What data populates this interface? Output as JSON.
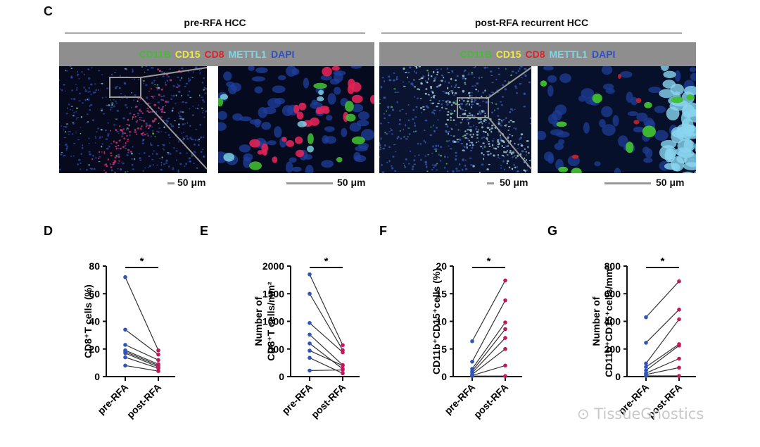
{
  "panel_c": {
    "letter": "C",
    "left_title": "pre-RFA HCC",
    "right_title": "post-RFA recurrent HCC",
    "stains": [
      {
        "label": "CD11B",
        "color": "#3fbf2f"
      },
      {
        "label": "CD15",
        "color": "#f2e93a"
      },
      {
        "label": "CD8",
        "color": "#e0202a"
      },
      {
        "label": "METTL1",
        "color": "#7ed6e6"
      },
      {
        "label": "DAPI",
        "color": "#2e4fc8"
      }
    ],
    "scale_labels": [
      "50 μm",
      "50 μm",
      "50 μm",
      "50 μm"
    ]
  },
  "colors": {
    "pre": "#2f55b8",
    "post": "#c2185b",
    "line": "#333333"
  },
  "chart_data": [
    {
      "type": "scatter",
      "letter": "D",
      "ylabel_lines": [
        "CD8⁺T cells (%)"
      ],
      "ylim": [
        0,
        80
      ],
      "yticks": [
        "0",
        "20",
        "40",
        "60",
        "80"
      ],
      "categories": [
        "pre-RFA",
        "post-RFA"
      ],
      "sig": "*",
      "pairs": [
        [
          72,
          19
        ],
        [
          34,
          16
        ],
        [
          23,
          12
        ],
        [
          19,
          9
        ],
        [
          18,
          8
        ],
        [
          17,
          7
        ],
        [
          14,
          6
        ],
        [
          8,
          4
        ]
      ]
    },
    {
      "type": "scatter",
      "letter": "E",
      "ylabel_lines": [
        "Number of",
        "CD8⁺T cells/mm²"
      ],
      "ylim": [
        0,
        2000
      ],
      "yticks": [
        "0",
        "500",
        "1000",
        "1500",
        "2000"
      ],
      "categories": [
        "pre-RFA",
        "post-RFA"
      ],
      "sig": "*",
      "pairs": [
        [
          1850,
          570
        ],
        [
          1500,
          480
        ],
        [
          970,
          440
        ],
        [
          760,
          210
        ],
        [
          600,
          140
        ],
        [
          470,
          200
        ],
        [
          340,
          60
        ],
        [
          110,
          120
        ]
      ]
    },
    {
      "type": "scatter",
      "letter": "F",
      "ylabel_lines": [
        "CD11b⁺CD15⁺cells (%)"
      ],
      "ylim": [
        0,
        20
      ],
      "yticks": [
        "0",
        "5",
        "10",
        "15",
        "20"
      ],
      "categories": [
        "pre-RFA",
        "post-RFA"
      ],
      "sig": "*",
      "pairs": [
        [
          6.4,
          17.4
        ],
        [
          2.7,
          13.8
        ],
        [
          1.4,
          9.8
        ],
        [
          1.0,
          8.6
        ],
        [
          0.7,
          7.0
        ],
        [
          0.4,
          5.0
        ],
        [
          0.2,
          2.0
        ],
        [
          0.1,
          0.1
        ]
      ]
    },
    {
      "type": "scatter",
      "letter": "G",
      "ylabel_lines": [
        "Number of",
        "CD11b⁺CD15⁺cells/mm²"
      ],
      "ylim": [
        0,
        800
      ],
      "yticks": [
        "0",
        "200",
        "400",
        "600",
        "800"
      ],
      "categories": [
        "pre-RFA",
        "post-RFA"
      ],
      "sig": "*",
      "pairs": [
        [
          430,
          690
        ],
        [
          245,
          485
        ],
        [
          95,
          415
        ],
        [
          70,
          235
        ],
        [
          45,
          225
        ],
        [
          25,
          130
        ],
        [
          15,
          65
        ],
        [
          5,
          5
        ]
      ]
    }
  ],
  "watermark": "TissueGnostics"
}
